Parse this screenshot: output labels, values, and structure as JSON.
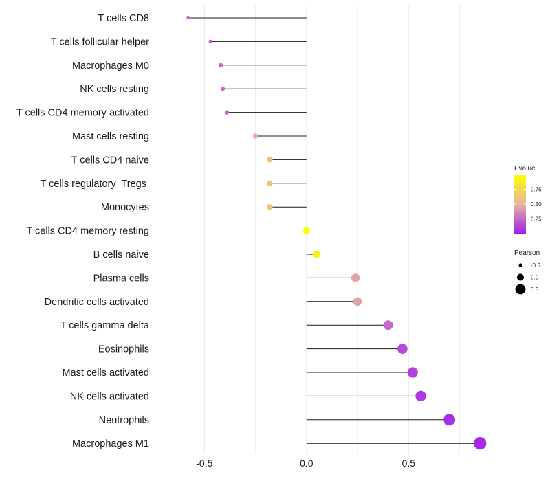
{
  "chart_data": {
    "type": "lollipop",
    "title": "",
    "xlabel": "",
    "ylabel": "",
    "xlim": [
      -0.72,
      0.93
    ],
    "x_ticks": [
      -0.5,
      0.0,
      0.5
    ],
    "x_tick_labels": [
      "-0.5",
      "0.0",
      "0.5"
    ],
    "grid": true,
    "points": [
      {
        "label": "T cells CD8",
        "pearson": -0.58,
        "pvalue": 0.25
      },
      {
        "label": "T cells follicular helper",
        "pearson": -0.47,
        "pvalue": 0.22
      },
      {
        "label": "Macrophages M0",
        "pearson": -0.42,
        "pvalue": 0.24
      },
      {
        "label": "NK cells resting",
        "pearson": -0.41,
        "pvalue": 0.25
      },
      {
        "label": "T cells CD4 memory activated",
        "pearson": -0.39,
        "pvalue": 0.26
      },
      {
        "label": "Mast cells resting",
        "pearson": -0.25,
        "pvalue": 0.48
      },
      {
        "label": "T cells CD4 naive",
        "pearson": -0.18,
        "pvalue": 0.6
      },
      {
        "label": "T cells regulatory  Tregs ",
        "pearson": -0.18,
        "pvalue": 0.6
      },
      {
        "label": "Monocytes",
        "pearson": -0.18,
        "pvalue": 0.6
      },
      {
        "label": "T cells CD4 memory resting",
        "pearson": 0.0,
        "pvalue": 1.0
      },
      {
        "label": "B cells naive",
        "pearson": 0.05,
        "pvalue": 0.9
      },
      {
        "label": "Plasma cells",
        "pearson": 0.24,
        "pvalue": 0.45
      },
      {
        "label": "Dendritic cells activated",
        "pearson": 0.25,
        "pvalue": 0.44
      },
      {
        "label": "T cells gamma delta",
        "pearson": 0.4,
        "pvalue": 0.25
      },
      {
        "label": "Eosinophils",
        "pearson": 0.47,
        "pvalue": 0.14
      },
      {
        "label": "Mast cells activated",
        "pearson": 0.52,
        "pvalue": 0.11
      },
      {
        "label": "NK cells activated",
        "pearson": 0.56,
        "pvalue": 0.09
      },
      {
        "label": "Neutrophils",
        "pearson": 0.7,
        "pvalue": 0.05
      },
      {
        "label": "Macrophages M1",
        "pearson": 0.85,
        "pvalue": 0.03
      }
    ],
    "legend": {
      "color": {
        "title": "Pvalue",
        "ticks": [
          "0.75",
          "0.50",
          "0.25"
        ],
        "tick_values": [
          0.75,
          0.5,
          0.25
        ],
        "range": [
          0.0,
          1.0
        ],
        "low_color": "#a020f0",
        "mid_color": "#e8b4a0",
        "high_color": "#ffff00"
      },
      "size": {
        "title": "Pearson",
        "labels": [
          "-0.5",
          "0.0",
          "0.5"
        ],
        "values": [
          -0.5,
          0.0,
          0.5
        ]
      },
      "placement": "right"
    }
  },
  "colors": {
    "stem": "#1a1a1a",
    "grid": "#ebebeb",
    "text": "#1a1a1a"
  }
}
